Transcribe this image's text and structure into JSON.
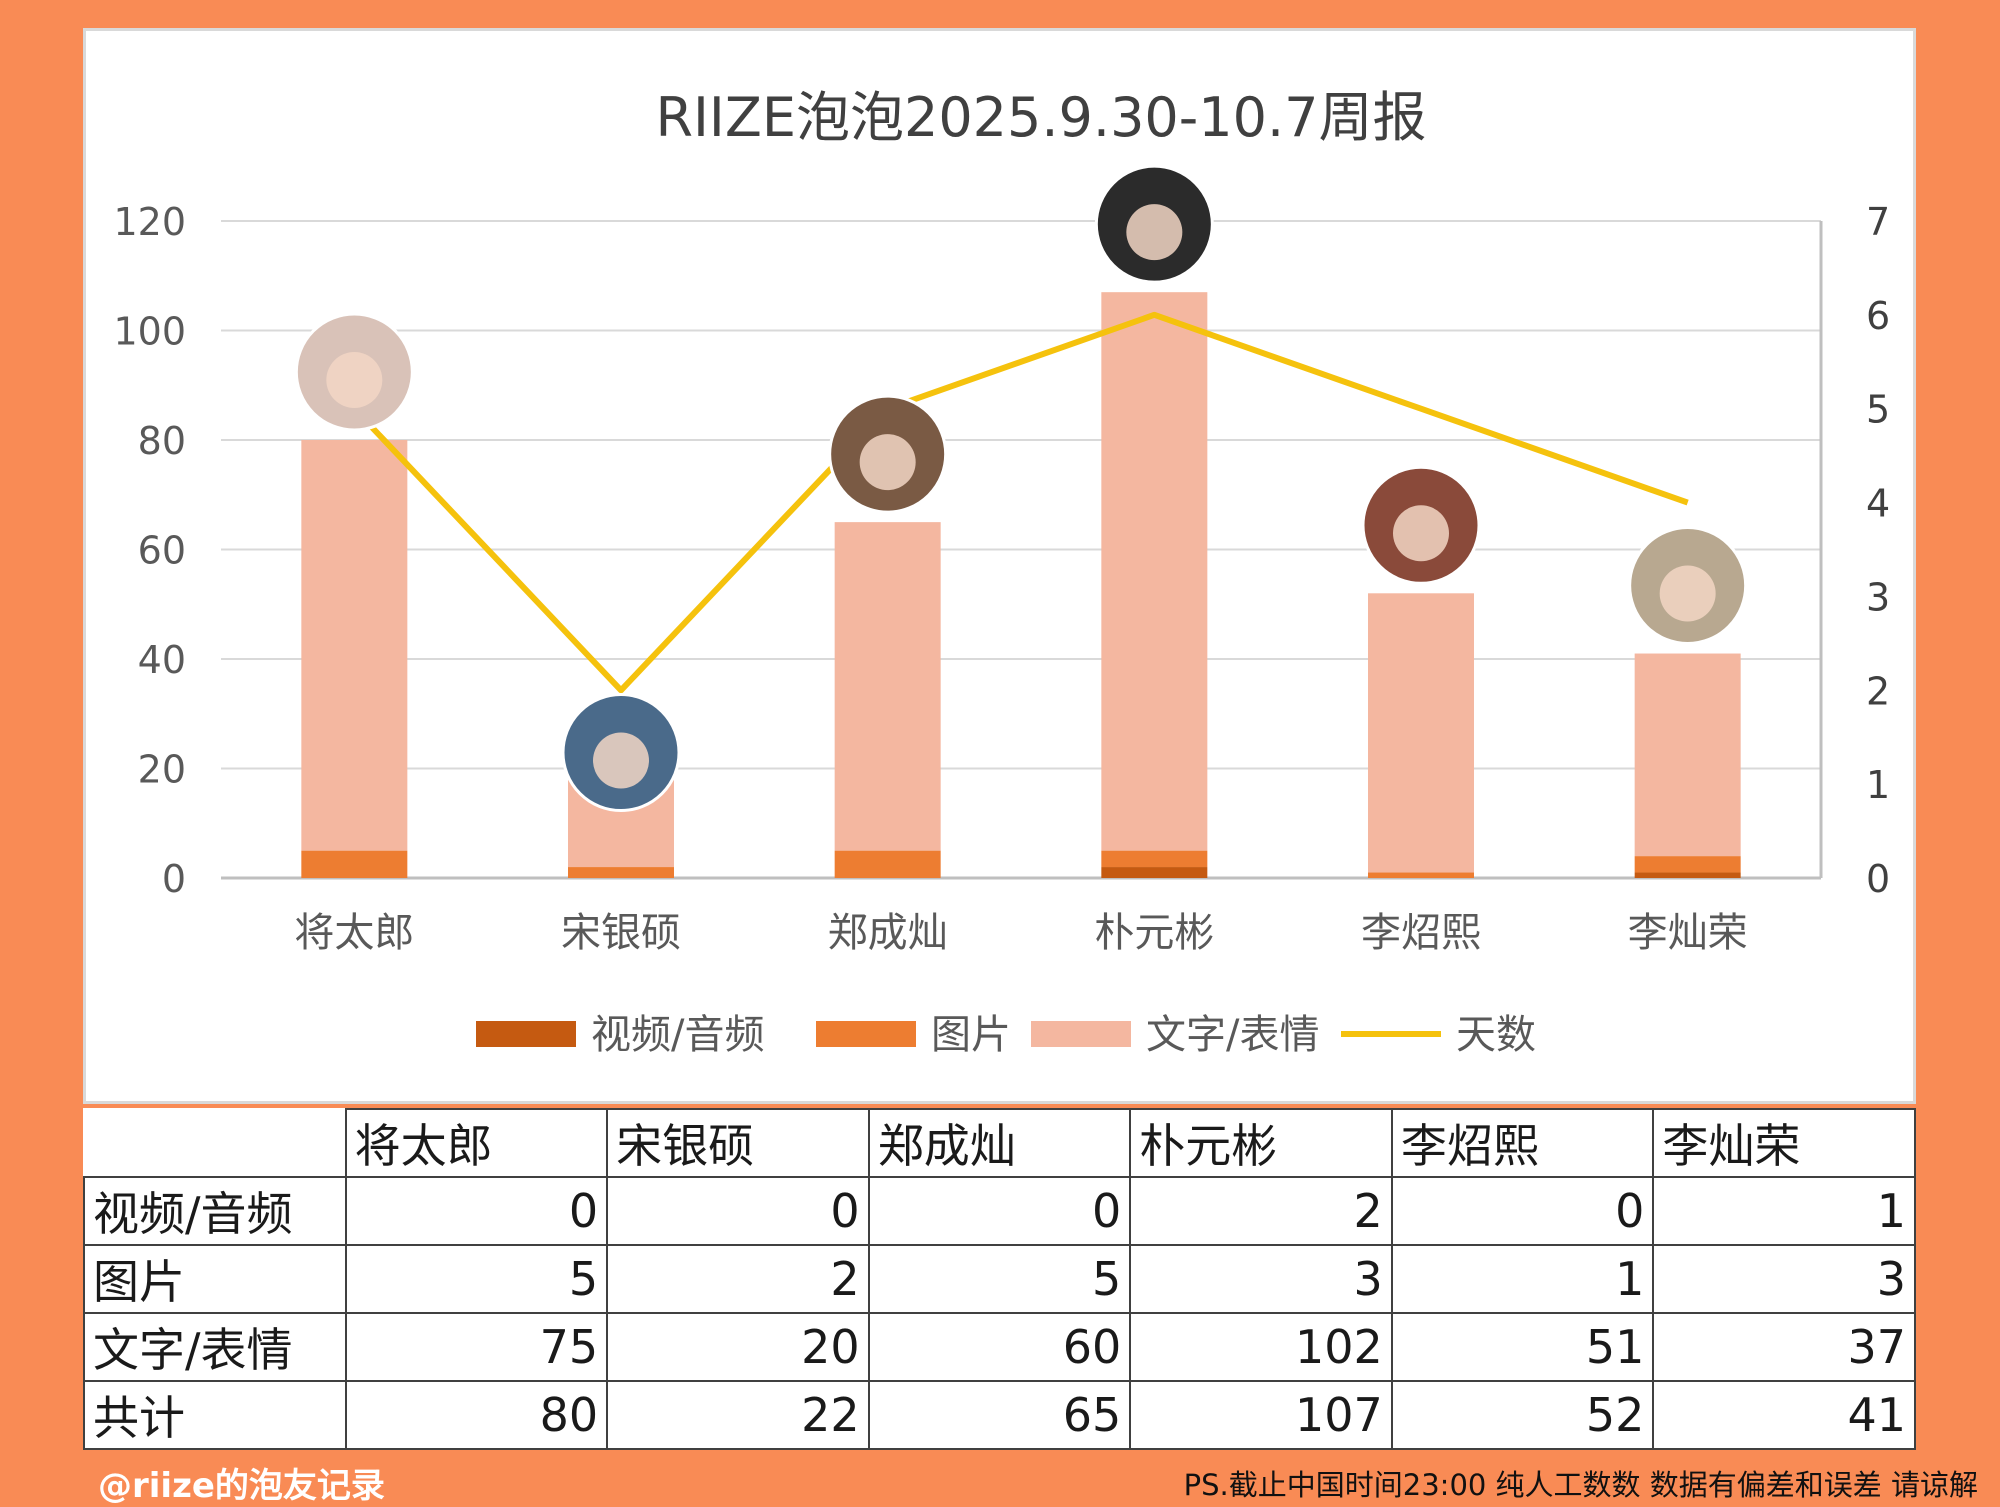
{
  "chart_data": {
    "type": "bar",
    "title": "RIIZE泡泡2025.9.30-10.7周报",
    "stacked": true,
    "categories": [
      "将太郎",
      "宋银硕",
      "郑成灿",
      "朴元彬",
      "李炤熙",
      "李灿荣"
    ],
    "series": [
      {
        "name": "视频/音频",
        "values": [
          0,
          0,
          0,
          2,
          0,
          1
        ],
        "color": "#C55A11",
        "axis": "left"
      },
      {
        "name": "图片",
        "values": [
          5,
          2,
          5,
          3,
          1,
          3
        ],
        "color": "#ED7D31",
        "axis": "left"
      },
      {
        "name": "文字/表情",
        "values": [
          75,
          20,
          60,
          102,
          51,
          37
        ],
        "color": "#F4B7A0",
        "axis": "left"
      },
      {
        "name": "天数",
        "type": "line",
        "values": [
          5,
          2,
          5,
          6,
          5,
          4
        ],
        "color": "#F5C20D",
        "axis": "right"
      }
    ],
    "totals": [
      80,
      22,
      65,
      107,
      52,
      41
    ],
    "ylim": [
      0,
      120
    ],
    "y_ticks": [
      "0",
      "20",
      "40",
      "60",
      "80",
      "100",
      "120"
    ],
    "y2lim": [
      0,
      7
    ],
    "y2_ticks": [
      "0",
      "1",
      "2",
      "3",
      "4",
      "5",
      "6",
      "7"
    ],
    "grid": true,
    "legend_position": "bottom",
    "avatars": "circular member photos above each bar"
  },
  "table": {
    "headers": [
      "将太郎",
      "宋银硕",
      "郑成灿",
      "朴元彬",
      "李炤熙",
      "李灿荣"
    ],
    "rows": [
      {
        "label": "视频/音频",
        "values": [
          "0",
          "0",
          "0",
          "2",
          "0",
          "1"
        ]
      },
      {
        "label": "图片",
        "values": [
          "5",
          "2",
          "5",
          "3",
          "1",
          "3"
        ]
      },
      {
        "label": "文字/表情",
        "values": [
          "75",
          "20",
          "60",
          "102",
          "51",
          "37"
        ]
      },
      {
        "label": "共计",
        "values": [
          "80",
          "22",
          "65",
          "107",
          "52",
          "41"
        ]
      }
    ]
  },
  "footer": {
    "left": "@riize的泡友记录",
    "right": "PS.截止中国时间23:00 纯人工数数 数据有偏差和误差 请谅解"
  },
  "colors": {
    "background": "#F98B55",
    "gridline": "#d9d9d9",
    "axis_text": "#595959"
  }
}
